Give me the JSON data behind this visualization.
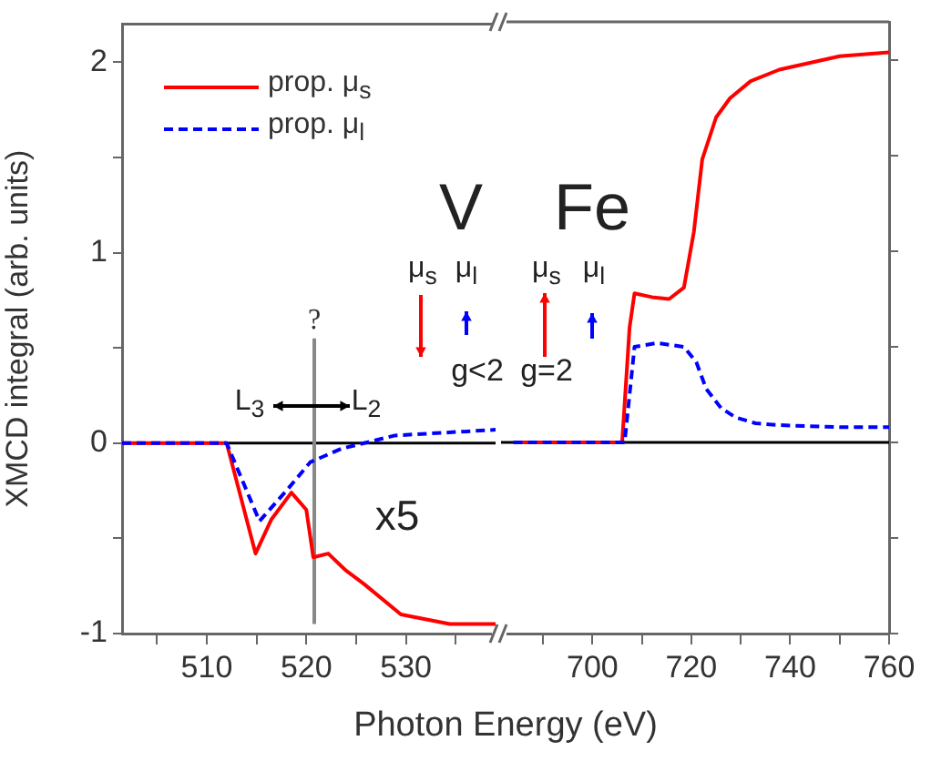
{
  "chart_data": [
    {
      "type": "line",
      "ylabel": "XMCD integral (arb. units)",
      "xlabel": "Photon Energy (eV)",
      "legend": "top left",
      "grid": false,
      "marker": "none",
      "xlim": [
        501.5,
        539
      ],
      "xticks": [
        {
          "value": 505,
          "label": null
        },
        510,
        {
          "value": 515,
          "label": null
        },
        520,
        {
          "value": 525,
          "label": null
        },
        530,
        {
          "value": 535,
          "label": null
        }
      ],
      "ylim": [
        -1,
        2.2
      ],
      "yticks": [
        -1,
        {
          "value": -0.5,
          "label": null
        },
        0,
        {
          "value": 0.5,
          "label": null
        },
        1,
        {
          "value": 1.5,
          "label": null
        },
        2
      ],
      "series": [
        {
          "name": "prop. μ$_{s}$",
          "color": "#ff0000",
          "line_style": "solid",
          "x": [
            501.5,
            512,
            514.9,
            516.5,
            518.5,
            520,
            520.7,
            522.2,
            524,
            525.8,
            529.5,
            534.4,
            539
          ],
          "values": [
            0,
            0,
            -0.58,
            -0.4,
            -0.26,
            -0.35,
            -0.6,
            -0.58,
            -0.67,
            -0.74,
            -0.9,
            -0.95,
            -0.95
          ]
        },
        {
          "name": "prop. μ$_{l}$",
          "color": "#0000ff",
          "line_style": "dashed",
          "x": [
            501.5,
            512,
            515.3,
            518,
            520.4,
            523.5,
            525.8,
            528.9,
            539
          ],
          "values": [
            0,
            0,
            -0.41,
            -0.25,
            -0.1,
            -0.03,
            0,
            0.04,
            0.07
          ]
        }
      ],
      "ref_lines": [
        {
          "axis": "y",
          "value": 0,
          "color": "#000000"
        },
        {
          "axis": "x",
          "value": 520.8,
          "label": "?",
          "color": "#888888"
        }
      ],
      "annotations": [
        "V",
        "μ$_{s}$",
        "μ$_{l}$",
        "g<2",
        "L$_{3}$",
        "L$_{2}$",
        "x5"
      ]
    },
    {
      "type": "line",
      "tick_labels": "x",
      "grid": false,
      "marker": "none",
      "xlim": [
        681.5,
        760
      ],
      "xticks": [
        {
          "value": 690,
          "label": null
        },
        700,
        {
          "value": 710,
          "label": null
        },
        720,
        {
          "value": 730,
          "label": null
        },
        740,
        {
          "value": 750,
          "label": null
        },
        760
      ],
      "ylim": [
        -1,
        2.2
      ],
      "yticks": [
        -1,
        {
          "value": -0.5,
          "label": null
        },
        0,
        {
          "value": 0.5,
          "label": null
        },
        1,
        {
          "value": 1.5,
          "label": null
        },
        2
      ],
      "series": [
        {
          "color": "#ff0000",
          "line_style": "solid",
          "x": [
            684,
            706,
            707.5,
            708.5,
            712,
            715.5,
            718.5,
            720.5,
            722.2,
            725,
            727.8,
            732,
            737.8,
            750,
            760
          ],
          "values": [
            0,
            0,
            0.6,
            0.78,
            0.76,
            0.75,
            0.81,
            1.1,
            1.48,
            1.7,
            1.8,
            1.89,
            1.95,
            2.02,
            2.04
          ]
        },
        {
          "color": "#0000ff",
          "line_style": "dashed",
          "x": [
            684,
            706.5,
            708.5,
            713,
            718.5,
            721,
            723,
            726,
            729,
            733,
            738,
            750,
            760
          ],
          "values": [
            0,
            0,
            0.5,
            0.52,
            0.5,
            0.42,
            0.28,
            0.18,
            0.13,
            0.1,
            0.09,
            0.08,
            0.08
          ]
        }
      ],
      "ref_lines": [
        {
          "axis": "y",
          "value": 0,
          "color": "#000000"
        }
      ],
      "annotations": [
        "Fe",
        "μ$_{s}$",
        "μ$_{l}$",
        "g=2"
      ]
    }
  ]
}
